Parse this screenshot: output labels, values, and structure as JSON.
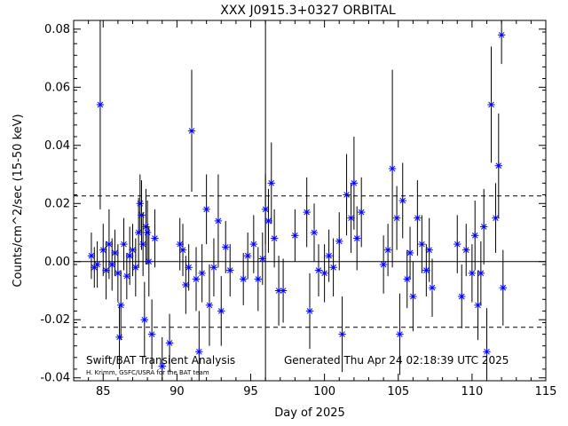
{
  "chart_data": {
    "type": "scatter",
    "title": "XXX J0915.3+0327 ORBITAL",
    "xlabel": "Day of 2025",
    "ylabel": "Counts/cm^2/sec (15-50 keV)",
    "xlim": [
      83,
      115
    ],
    "ylim": [
      -0.041,
      0.083
    ],
    "xticks": [
      85,
      90,
      95,
      100,
      105,
      110,
      115
    ],
    "yticks": [
      -0.04,
      -0.02,
      0.0,
      0.02,
      0.04,
      0.06,
      0.08
    ],
    "ytick_labels": [
      "-0.04",
      "-0.02",
      "0.00",
      "0.02",
      "0.04",
      "0.06",
      "0.08"
    ],
    "zero_line": 0.0,
    "threshold_lines": [
      0.0226,
      -0.0226
    ],
    "vertical_marker_day": 96.0,
    "footer_left": "Swift/BAT Transient Analysis",
    "footer_credit": "H. Krimm, GSFC/USRA for the BAT team",
    "footer_right": "Generated Thu Apr 24 02:18:39 UTC 2025",
    "marker_color": "#0000ff",
    "series": [
      {
        "points": [
          [
            84.2,
            0.002,
            0.008
          ],
          [
            84.4,
            -0.002,
            0.007
          ],
          [
            84.6,
            -0.001,
            0.008
          ],
          [
            84.8,
            0.054,
            0.036
          ],
          [
            85.0,
            0.004,
            0.009
          ],
          [
            85.2,
            -0.003,
            0.01
          ],
          [
            85.4,
            0.006,
            0.012
          ],
          [
            85.6,
            -0.001,
            0.009
          ],
          [
            85.8,
            0.003,
            0.008
          ],
          [
            86.0,
            -0.004,
            0.01
          ],
          [
            86.1,
            -0.026,
            0.011
          ],
          [
            86.2,
            -0.015,
            0.012
          ],
          [
            86.4,
            0.006,
            0.009
          ],
          [
            86.6,
            -0.005,
            0.008
          ],
          [
            86.8,
            0.002,
            0.01
          ],
          [
            87.0,
            0.004,
            0.009
          ],
          [
            87.2,
            -0.002,
            0.01
          ],
          [
            87.4,
            0.01,
            0.012
          ],
          [
            87.5,
            0.02,
            0.01
          ],
          [
            87.6,
            0.016,
            0.012
          ],
          [
            87.7,
            0.006,
            0.011
          ],
          [
            87.8,
            -0.02,
            0.013
          ],
          [
            87.9,
            0.012,
            0.013
          ],
          [
            88.0,
            0.01,
            0.011
          ],
          [
            88.1,
            0.0,
            0.012
          ],
          [
            88.3,
            -0.025,
            0.012
          ],
          [
            88.5,
            0.008,
            0.01
          ],
          [
            89.0,
            -0.036,
            0.01
          ],
          [
            89.5,
            -0.028,
            0.01
          ],
          [
            90.2,
            0.006,
            0.009
          ],
          [
            90.4,
            0.004,
            0.009
          ],
          [
            90.6,
            -0.008,
            0.01
          ],
          [
            90.8,
            -0.002,
            0.008
          ],
          [
            91.0,
            0.045,
            0.021
          ],
          [
            91.3,
            -0.006,
            0.011
          ],
          [
            91.5,
            -0.031,
            0.014
          ],
          [
            91.7,
            -0.004,
            0.01
          ],
          [
            92.0,
            0.018,
            0.012
          ],
          [
            92.2,
            -0.015,
            0.014
          ],
          [
            92.5,
            -0.002,
            0.01
          ],
          [
            92.8,
            0.014,
            0.016
          ],
          [
            93.0,
            -0.017,
            0.012
          ],
          [
            93.3,
            0.005,
            0.009
          ],
          [
            93.6,
            -0.003,
            0.009
          ],
          [
            94.5,
            -0.006,
            0.009
          ],
          [
            94.8,
            0.002,
            0.008
          ],
          [
            95.2,
            0.006,
            0.01
          ],
          [
            95.5,
            -0.006,
            0.011
          ],
          [
            95.8,
            0.001,
            0.009
          ],
          [
            96.0,
            0.018,
            0.012
          ],
          [
            96.2,
            0.014,
            0.011
          ],
          [
            96.4,
            0.027,
            0.014
          ],
          [
            96.6,
            0.008,
            0.01
          ],
          [
            96.9,
            -0.01,
            0.012
          ],
          [
            97.2,
            -0.01,
            0.011
          ],
          [
            98.0,
            0.009,
            0.009
          ],
          [
            98.8,
            0.017,
            0.012
          ],
          [
            99.0,
            -0.017,
            0.013
          ],
          [
            99.3,
            0.01,
            0.01
          ],
          [
            99.6,
            -0.003,
            0.009
          ],
          [
            100.0,
            -0.004,
            0.01
          ],
          [
            100.3,
            0.002,
            0.009
          ],
          [
            100.6,
            -0.002,
            0.01
          ],
          [
            101.0,
            0.007,
            0.01
          ],
          [
            101.2,
            -0.025,
            0.013
          ],
          [
            101.5,
            0.023,
            0.014
          ],
          [
            101.8,
            0.015,
            0.012
          ],
          [
            102.0,
            0.027,
            0.016
          ],
          [
            102.2,
            0.008,
            0.011
          ],
          [
            102.5,
            0.017,
            0.012
          ],
          [
            104.0,
            -0.001,
            0.01
          ],
          [
            104.3,
            0.004,
            0.009
          ],
          [
            104.6,
            0.032,
            0.034
          ],
          [
            104.9,
            0.015,
            0.011
          ],
          [
            105.1,
            -0.025,
            0.014
          ],
          [
            105.3,
            0.021,
            0.013
          ],
          [
            105.6,
            -0.006,
            0.01
          ],
          [
            105.8,
            0.003,
            0.009
          ],
          [
            106.0,
            -0.012,
            0.012
          ],
          [
            106.3,
            0.015,
            0.013
          ],
          [
            106.6,
            0.006,
            0.01
          ],
          [
            106.9,
            -0.003,
            0.009
          ],
          [
            107.1,
            0.004,
            0.011
          ],
          [
            107.3,
            -0.009,
            0.01
          ],
          [
            109.0,
            0.006,
            0.01
          ],
          [
            109.3,
            -0.012,
            0.011
          ],
          [
            109.6,
            0.004,
            0.009
          ],
          [
            110.0,
            -0.004,
            0.01
          ],
          [
            110.2,
            0.009,
            0.012
          ],
          [
            110.4,
            -0.015,
            0.012
          ],
          [
            110.6,
            -0.004,
            0.011
          ],
          [
            110.8,
            0.012,
            0.013
          ],
          [
            111.0,
            -0.031,
            0.015
          ],
          [
            111.3,
            0.054,
            0.02
          ],
          [
            111.6,
            0.015,
            0.012
          ],
          [
            111.8,
            0.033,
            0.018
          ],
          [
            112.0,
            0.078,
            0.01
          ],
          [
            112.1,
            -0.009,
            0.013
          ]
        ]
      }
    ]
  }
}
